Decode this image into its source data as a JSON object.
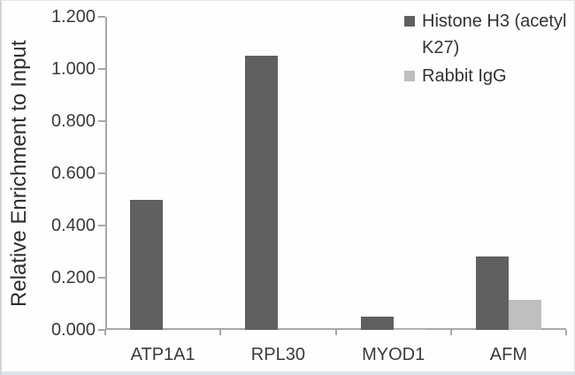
{
  "chart_data": {
    "type": "bar",
    "title": "",
    "xlabel": "",
    "ylabel": "Relative Enrichment to Input",
    "categories": [
      "ATP1A1",
      "RPL30",
      "MYOD1",
      "AFM"
    ],
    "series": [
      {
        "name": "Histone H3 (acetyl K27)",
        "color": "#606060",
        "values": [
          0.5,
          1.05,
          0.05,
          0.28
        ]
      },
      {
        "name": "Rabbit IgG",
        "color": "#bfbfbf",
        "values": [
          0,
          0,
          0.005,
          0.115
        ]
      }
    ],
    "ylim": [
      0,
      1.2
    ],
    "ytick_step": 0.2,
    "ytick_labels": [
      "0.000",
      "0.200",
      "0.400",
      "0.600",
      "0.800",
      "1.000",
      "1.200"
    ],
    "grid": false,
    "legend_position": "top-right"
  },
  "colors": {
    "axis": "#a8a8a8",
    "text": "#3a3a3a",
    "series_dark": "#606060",
    "series_light": "#bfbfbf"
  }
}
